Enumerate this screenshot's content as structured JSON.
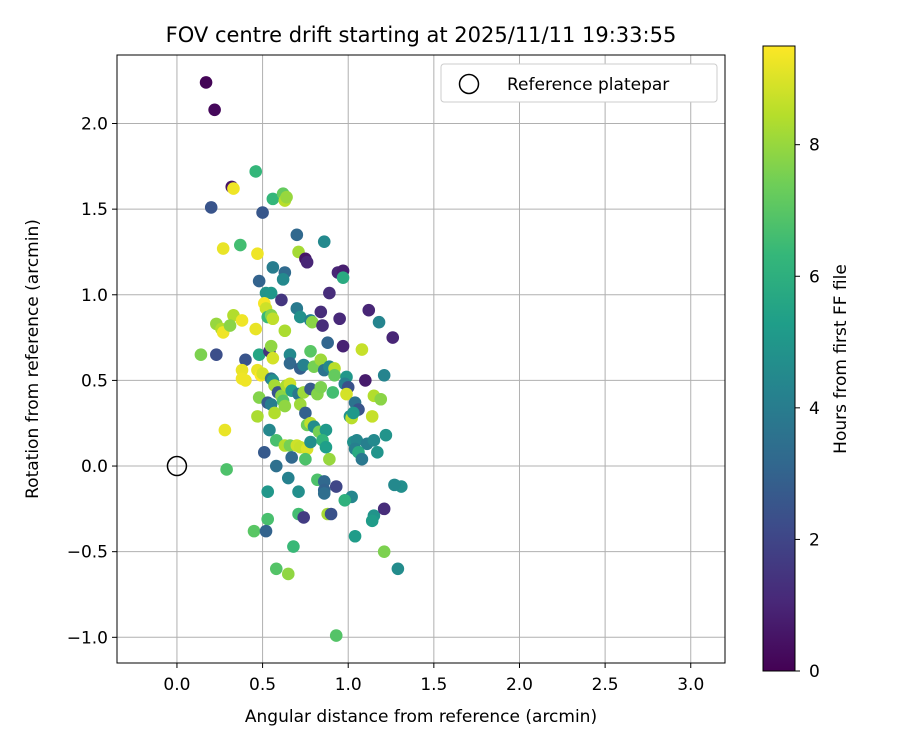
{
  "chart_data": {
    "type": "scatter",
    "title": "FOV centre drift starting at 2025/11/11 19:33:55",
    "xlabel": "Angular distance from reference (arcmin)",
    "ylabel": "Rotation from reference (arcmin)",
    "xlim": [
      -0.35,
      3.2
    ],
    "ylim": [
      -1.15,
      2.4
    ],
    "xticks": [
      0.0,
      0.5,
      1.0,
      1.5,
      2.0,
      2.5,
      3.0
    ],
    "xtick_labels": [
      "0.0",
      "0.5",
      "1.0",
      "1.5",
      "2.0",
      "2.5",
      "3.0"
    ],
    "yticks": [
      -1.0,
      -0.5,
      0.0,
      0.5,
      1.0,
      1.5,
      2.0
    ],
    "ytick_labels": [
      "−1.0",
      "−0.5",
      "0.0",
      "0.5",
      "1.0",
      "1.5",
      "2.0"
    ],
    "grid": true,
    "legend": {
      "position": "top-right",
      "label": "Reference platepar"
    },
    "reference_point": {
      "x": 0.0,
      "y": 0.0
    },
    "colorbar": {
      "label": "Hours from first FF file",
      "range": [
        0,
        9.5
      ],
      "ticks": [
        0,
        2,
        4,
        6,
        8
      ],
      "tick_labels": [
        "0",
        "2",
        "4",
        "6",
        "8"
      ],
      "colormap": [
        "#440154",
        "#482878",
        "#3e4989",
        "#31688e",
        "#26828e",
        "#1f9e89",
        "#35b779",
        "#6ece58",
        "#b5de2b",
        "#fde725"
      ]
    },
    "points": [
      {
        "x": 0.17,
        "y": 2.24,
        "h": 0.1
      },
      {
        "x": 0.22,
        "y": 2.08,
        "h": 0.2
      },
      {
        "x": 0.32,
        "y": 1.63,
        "h": 0.5
      },
      {
        "x": 0.33,
        "y": 1.62,
        "h": 9.3
      },
      {
        "x": 0.2,
        "y": 1.51,
        "h": 2.5
      },
      {
        "x": 0.46,
        "y": 1.72,
        "h": 6.3
      },
      {
        "x": 0.5,
        "y": 1.48,
        "h": 2.6
      },
      {
        "x": 0.56,
        "y": 1.56,
        "h": 6.3
      },
      {
        "x": 0.62,
        "y": 1.59,
        "h": 7.2
      },
      {
        "x": 0.63,
        "y": 1.55,
        "h": 8.5
      },
      {
        "x": 0.64,
        "y": 1.57,
        "h": 8.0
      },
      {
        "x": 0.27,
        "y": 1.27,
        "h": 9.2
      },
      {
        "x": 0.37,
        "y": 1.29,
        "h": 6.6
      },
      {
        "x": 0.47,
        "y": 1.24,
        "h": 9.3
      },
      {
        "x": 0.7,
        "y": 1.35,
        "h": 3.2
      },
      {
        "x": 0.71,
        "y": 1.25,
        "h": 8.2
      },
      {
        "x": 0.75,
        "y": 1.21,
        "h": 0.6
      },
      {
        "x": 0.76,
        "y": 1.19,
        "h": 1.0
      },
      {
        "x": 0.86,
        "y": 1.31,
        "h": 4.5
      },
      {
        "x": 0.48,
        "y": 1.08,
        "h": 3.0
      },
      {
        "x": 0.56,
        "y": 1.16,
        "h": 4.0
      },
      {
        "x": 0.63,
        "y": 1.13,
        "h": 3.3
      },
      {
        "x": 0.62,
        "y": 1.09,
        "h": 4.5
      },
      {
        "x": 0.52,
        "y": 1.01,
        "h": 4.9
      },
      {
        "x": 0.55,
        "y": 1.01,
        "h": 5.0
      },
      {
        "x": 0.61,
        "y": 0.97,
        "h": 1.5
      },
      {
        "x": 0.94,
        "y": 1.13,
        "h": 1.0
      },
      {
        "x": 0.97,
        "y": 1.14,
        "h": 0.8
      },
      {
        "x": 0.97,
        "y": 1.1,
        "h": 5.8
      },
      {
        "x": 0.89,
        "y": 1.01,
        "h": 1.2
      },
      {
        "x": 0.51,
        "y": 0.95,
        "h": 9.4
      },
      {
        "x": 0.52,
        "y": 0.92,
        "h": 8.8
      },
      {
        "x": 0.33,
        "y": 0.88,
        "h": 8.4
      },
      {
        "x": 0.38,
        "y": 0.85,
        "h": 9.3
      },
      {
        "x": 0.23,
        "y": 0.83,
        "h": 8.0
      },
      {
        "x": 0.26,
        "y": 0.8,
        "h": 8.4
      },
      {
        "x": 0.27,
        "y": 0.78,
        "h": 9.3
      },
      {
        "x": 0.31,
        "y": 0.82,
        "h": 7.8
      },
      {
        "x": 0.46,
        "y": 0.8,
        "h": 9.2
      },
      {
        "x": 0.53,
        "y": 0.87,
        "h": 6.4
      },
      {
        "x": 0.55,
        "y": 0.88,
        "h": 7.7
      },
      {
        "x": 0.56,
        "y": 0.86,
        "h": 8.6
      },
      {
        "x": 0.63,
        "y": 0.79,
        "h": 8.3
      },
      {
        "x": 0.7,
        "y": 0.92,
        "h": 3.9
      },
      {
        "x": 0.72,
        "y": 0.87,
        "h": 4.8
      },
      {
        "x": 0.78,
        "y": 0.85,
        "h": 4.2
      },
      {
        "x": 0.79,
        "y": 0.84,
        "h": 7.8
      },
      {
        "x": 0.84,
        "y": 0.9,
        "h": 1.2
      },
      {
        "x": 0.85,
        "y": 0.82,
        "h": 1.2
      },
      {
        "x": 0.88,
        "y": 0.72,
        "h": 3.1
      },
      {
        "x": 0.95,
        "y": 0.86,
        "h": 1.1
      },
      {
        "x": 0.97,
        "y": 0.7,
        "h": 0.9
      },
      {
        "x": 1.12,
        "y": 0.91,
        "h": 1.0
      },
      {
        "x": 1.18,
        "y": 0.84,
        "h": 4.3
      },
      {
        "x": 1.26,
        "y": 0.75,
        "h": 1.0
      },
      {
        "x": 0.14,
        "y": 0.65,
        "h": 7.6
      },
      {
        "x": 0.23,
        "y": 0.65,
        "h": 2.3
      },
      {
        "x": 0.4,
        "y": 0.62,
        "h": 2.5
      },
      {
        "x": 0.48,
        "y": 0.65,
        "h": 5.6
      },
      {
        "x": 0.54,
        "y": 0.67,
        "h": 1.4
      },
      {
        "x": 0.55,
        "y": 0.7,
        "h": 7.9
      },
      {
        "x": 0.56,
        "y": 0.63,
        "h": 8.9
      },
      {
        "x": 0.66,
        "y": 0.65,
        "h": 4.5
      },
      {
        "x": 0.66,
        "y": 0.6,
        "h": 3.2
      },
      {
        "x": 0.72,
        "y": 0.57,
        "h": 2.9
      },
      {
        "x": 0.74,
        "y": 0.59,
        "h": 4.2
      },
      {
        "x": 0.78,
        "y": 0.67,
        "h": 7.0
      },
      {
        "x": 0.8,
        "y": 0.58,
        "h": 7.5
      },
      {
        "x": 0.84,
        "y": 0.62,
        "h": 8.1
      },
      {
        "x": 0.86,
        "y": 0.56,
        "h": 3.6
      },
      {
        "x": 0.89,
        "y": 0.58,
        "h": 4.4
      },
      {
        "x": 0.92,
        "y": 0.57,
        "h": 8.5
      },
      {
        "x": 0.92,
        "y": 0.53,
        "h": 7.2
      },
      {
        "x": 0.99,
        "y": 0.52,
        "h": 5.0
      },
      {
        "x": 0.98,
        "y": 0.48,
        "h": 4.2
      },
      {
        "x": 1.0,
        "y": 0.46,
        "h": 2.4
      },
      {
        "x": 1.08,
        "y": 0.68,
        "h": 8.7
      },
      {
        "x": 1.1,
        "y": 0.5,
        "h": 0.7
      },
      {
        "x": 1.21,
        "y": 0.53,
        "h": 4.3
      },
      {
        "x": 0.38,
        "y": 0.56,
        "h": 9.2
      },
      {
        "x": 0.38,
        "y": 0.51,
        "h": 9.3
      },
      {
        "x": 0.4,
        "y": 0.5,
        "h": 9.3
      },
      {
        "x": 0.47,
        "y": 0.56,
        "h": 9.2
      },
      {
        "x": 0.49,
        "y": 0.53,
        "h": 9.5
      },
      {
        "x": 0.5,
        "y": 0.54,
        "h": 8.9
      },
      {
        "x": 0.55,
        "y": 0.51,
        "h": 3.5
      },
      {
        "x": 0.56,
        "y": 0.5,
        "h": 4.7
      },
      {
        "x": 0.57,
        "y": 0.47,
        "h": 8.2
      },
      {
        "x": 0.59,
        "y": 0.43,
        "h": 2.5
      },
      {
        "x": 0.61,
        "y": 0.41,
        "h": 7.8
      },
      {
        "x": 0.64,
        "y": 0.47,
        "h": 8.3
      },
      {
        "x": 0.66,
        "y": 0.48,
        "h": 8.8
      },
      {
        "x": 0.67,
        "y": 0.44,
        "h": 5.2
      },
      {
        "x": 0.71,
        "y": 0.42,
        "h": 3.8
      },
      {
        "x": 0.74,
        "y": 0.43,
        "h": 8.1
      },
      {
        "x": 0.78,
        "y": 0.45,
        "h": 2.7
      },
      {
        "x": 0.82,
        "y": 0.42,
        "h": 7.7
      },
      {
        "x": 0.84,
        "y": 0.46,
        "h": 7.6
      },
      {
        "x": 0.91,
        "y": 0.43,
        "h": 6.6
      },
      {
        "x": 0.99,
        "y": 0.42,
        "h": 8.9
      },
      {
        "x": 1.04,
        "y": 0.37,
        "h": 3.6
      },
      {
        "x": 1.06,
        "y": 0.33,
        "h": 2.5
      },
      {
        "x": 1.15,
        "y": 0.41,
        "h": 8.4
      },
      {
        "x": 1.19,
        "y": 0.39,
        "h": 7.8
      },
      {
        "x": 0.48,
        "y": 0.4,
        "h": 7.7
      },
      {
        "x": 0.53,
        "y": 0.37,
        "h": 2.7
      },
      {
        "x": 0.55,
        "y": 0.36,
        "h": 4.0
      },
      {
        "x": 0.57,
        "y": 0.31,
        "h": 8.4
      },
      {
        "x": 0.62,
        "y": 0.38,
        "h": 6.9
      },
      {
        "x": 0.63,
        "y": 0.35,
        "h": 7.9
      },
      {
        "x": 0.72,
        "y": 0.36,
        "h": 8.1
      },
      {
        "x": 0.75,
        "y": 0.31,
        "h": 2.9
      },
      {
        "x": 0.47,
        "y": 0.29,
        "h": 8.3
      },
      {
        "x": 0.54,
        "y": 0.21,
        "h": 4.4
      },
      {
        "x": 0.76,
        "y": 0.24,
        "h": 7.4
      },
      {
        "x": 0.78,
        "y": 0.25,
        "h": 8.6
      },
      {
        "x": 0.8,
        "y": 0.23,
        "h": 4.6
      },
      {
        "x": 0.83,
        "y": 0.2,
        "h": 7.5
      },
      {
        "x": 0.87,
        "y": 0.21,
        "h": 5.1
      },
      {
        "x": 1.01,
        "y": 0.29,
        "h": 4.9
      },
      {
        "x": 1.02,
        "y": 0.28,
        "h": 8.5
      },
      {
        "x": 1.03,
        "y": 0.31,
        "h": 5.1
      },
      {
        "x": 1.14,
        "y": 0.29,
        "h": 8.7
      },
      {
        "x": 0.28,
        "y": 0.21,
        "h": 9.2
      },
      {
        "x": 0.58,
        "y": 0.15,
        "h": 6.7
      },
      {
        "x": 0.63,
        "y": 0.12,
        "h": 8.4
      },
      {
        "x": 0.66,
        "y": 0.12,
        "h": 7.5
      },
      {
        "x": 0.7,
        "y": 0.12,
        "h": 8.8
      },
      {
        "x": 0.72,
        "y": 0.11,
        "h": 8.7
      },
      {
        "x": 0.76,
        "y": 0.1,
        "h": 9.0
      },
      {
        "x": 0.78,
        "y": 0.14,
        "h": 4.7
      },
      {
        "x": 0.85,
        "y": 0.15,
        "h": 6.2
      },
      {
        "x": 0.87,
        "y": 0.11,
        "h": 5.3
      },
      {
        "x": 1.03,
        "y": 0.14,
        "h": 4.8
      },
      {
        "x": 1.05,
        "y": 0.15,
        "h": 4.4
      },
      {
        "x": 1.11,
        "y": 0.13,
        "h": 4.1
      },
      {
        "x": 1.15,
        "y": 0.15,
        "h": 4.5
      },
      {
        "x": 1.22,
        "y": 0.18,
        "h": 4.9
      },
      {
        "x": 1.04,
        "y": 0.1,
        "h": 4.1
      },
      {
        "x": 1.06,
        "y": 0.08,
        "h": 5.8
      },
      {
        "x": 1.17,
        "y": 0.08,
        "h": 4.9
      },
      {
        "x": 0.51,
        "y": 0.08,
        "h": 2.7
      },
      {
        "x": 0.67,
        "y": 0.05,
        "h": 3.2
      },
      {
        "x": 0.75,
        "y": 0.04,
        "h": 6.8
      },
      {
        "x": 0.89,
        "y": 0.04,
        "h": 8.0
      },
      {
        "x": 1.08,
        "y": 0.04,
        "h": 3.8
      },
      {
        "x": 0.29,
        "y": -0.02,
        "h": 6.8
      },
      {
        "x": 0.58,
        "y": 0.0,
        "h": 3.5
      },
      {
        "x": 0.65,
        "y": -0.07,
        "h": 4.2
      },
      {
        "x": 0.82,
        "y": -0.08,
        "h": 6.8
      },
      {
        "x": 0.86,
        "y": -0.09,
        "h": 3.2
      },
      {
        "x": 0.93,
        "y": -0.12,
        "h": 2.0
      },
      {
        "x": 1.02,
        "y": -0.18,
        "h": 4.4
      },
      {
        "x": 1.31,
        "y": -0.12,
        "h": 4.7
      },
      {
        "x": 1.27,
        "y": -0.11,
        "h": 4.5
      },
      {
        "x": 0.53,
        "y": -0.15,
        "h": 5.0
      },
      {
        "x": 0.71,
        "y": -0.15,
        "h": 4.7
      },
      {
        "x": 0.86,
        "y": -0.14,
        "h": 3.0
      },
      {
        "x": 0.86,
        "y": -0.16,
        "h": 3.4
      },
      {
        "x": 0.98,
        "y": -0.2,
        "h": 6.1
      },
      {
        "x": 1.15,
        "y": -0.29,
        "h": 4.9
      },
      {
        "x": 1.21,
        "y": -0.25,
        "h": 1.2
      },
      {
        "x": 1.14,
        "y": -0.32,
        "h": 5.2
      },
      {
        "x": 0.53,
        "y": -0.31,
        "h": 6.7
      },
      {
        "x": 0.71,
        "y": -0.28,
        "h": 6.6
      },
      {
        "x": 0.74,
        "y": -0.3,
        "h": 1.7
      },
      {
        "x": 0.88,
        "y": -0.28,
        "h": 8.2
      },
      {
        "x": 0.9,
        "y": -0.28,
        "h": 2.4
      },
      {
        "x": 0.45,
        "y": -0.38,
        "h": 7.0
      },
      {
        "x": 0.52,
        "y": -0.38,
        "h": 3.0
      },
      {
        "x": 0.68,
        "y": -0.47,
        "h": 6.4
      },
      {
        "x": 1.04,
        "y": -0.41,
        "h": 5.2
      },
      {
        "x": 1.21,
        "y": -0.5,
        "h": 7.6
      },
      {
        "x": 0.58,
        "y": -0.6,
        "h": 6.9
      },
      {
        "x": 0.65,
        "y": -0.63,
        "h": 7.9
      },
      {
        "x": 1.29,
        "y": -0.6,
        "h": 4.6
      },
      {
        "x": 0.93,
        "y": -0.99,
        "h": 6.9
      }
    ]
  }
}
